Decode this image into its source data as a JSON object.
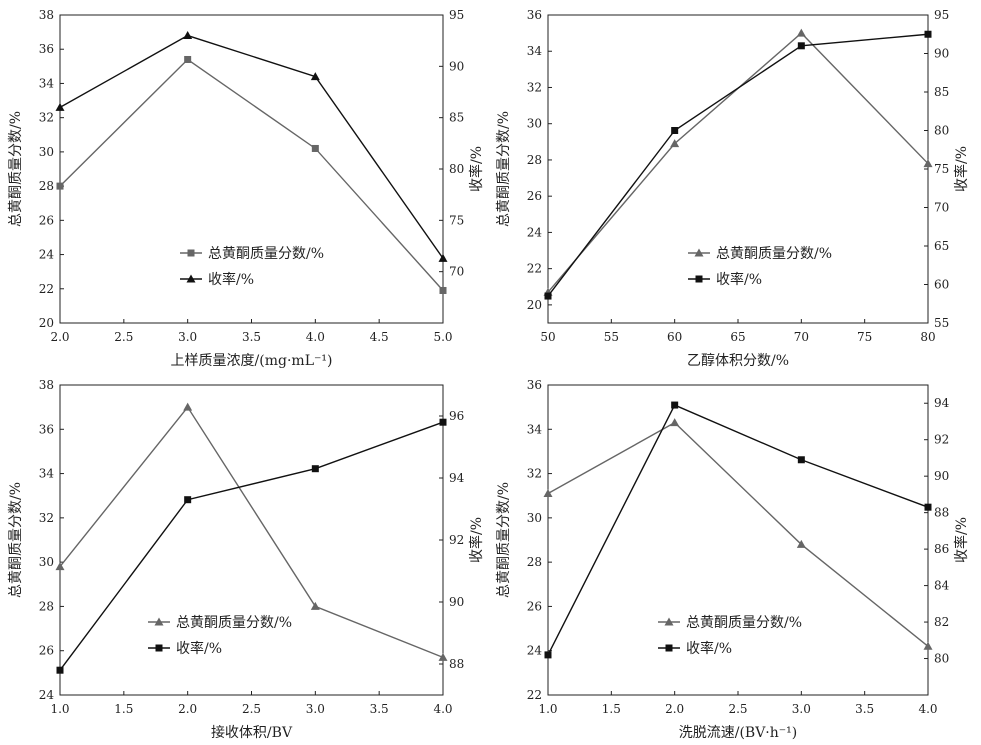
{
  "chart_data": [
    {
      "type": "line",
      "xlabel": "上样质量浓度/(mg·mL⁻¹)",
      "ylabel_left": "总黄酮质量分数/%",
      "ylabel_right": "收率/%",
      "x": [
        2.0,
        3.0,
        4.0,
        5.0
      ],
      "xlim": [
        2.0,
        5.0
      ],
      "xticks": [
        "2.0",
        "2.5",
        "3.0",
        "3.5",
        "4.0",
        "4.5",
        "5.0"
      ],
      "ylim_left": [
        20,
        38
      ],
      "yticks_left": [
        "20",
        "22",
        "24",
        "26",
        "28",
        "30",
        "32",
        "34",
        "36",
        "38"
      ],
      "ylim_right": [
        65,
        95
      ],
      "yticks_right": [
        "70",
        "75",
        "80",
        "85",
        "90",
        "95"
      ],
      "series": [
        {
          "name": "总黄酮质量分数/%",
          "axis": "left",
          "marker": "square",
          "color": "#666666",
          "values": [
            28.0,
            35.4,
            30.2,
            21.9
          ]
        },
        {
          "name": "收率/%",
          "axis": "right",
          "marker": "triangle",
          "color": "#111111",
          "values": [
            86.0,
            93.0,
            89.0,
            71.3
          ]
        }
      ],
      "legend_position": "lower-center"
    },
    {
      "type": "line",
      "xlabel": "乙醇体积分数/%",
      "ylabel_left": "总黄酮质量分数/%",
      "ylabel_right": "收率/%",
      "x": [
        50,
        60,
        70,
        80
      ],
      "xlim": [
        50,
        80
      ],
      "xticks": [
        "50",
        "55",
        "60",
        "65",
        "70",
        "75",
        "80"
      ],
      "ylim_left": [
        19,
        36
      ],
      "yticks_left": [
        "20",
        "22",
        "24",
        "26",
        "28",
        "30",
        "32",
        "34",
        "36"
      ],
      "ylim_right": [
        55,
        95
      ],
      "yticks_right": [
        "55",
        "60",
        "65",
        "70",
        "75",
        "80",
        "85",
        "90",
        "95"
      ],
      "series": [
        {
          "name": "总黄酮质量分数/%",
          "axis": "left",
          "marker": "triangle",
          "color": "#666666",
          "values": [
            20.7,
            28.9,
            35.0,
            27.8
          ]
        },
        {
          "name": "收率/%",
          "axis": "right",
          "marker": "square",
          "color": "#111111",
          "values": [
            58.5,
            80.0,
            91.0,
            92.5
          ]
        }
      ],
      "legend_position": "lower-center"
    },
    {
      "type": "line",
      "xlabel": "接收体积/BV",
      "ylabel_left": "总黄酮质量分数/%",
      "ylabel_right": "收率/%",
      "x": [
        1.0,
        2.0,
        3.0,
        4.0
      ],
      "xlim": [
        1.0,
        4.0
      ],
      "xticks": [
        "1.0",
        "1.5",
        "2.0",
        "2.5",
        "3.0",
        "3.5",
        "4.0"
      ],
      "ylim_left": [
        24,
        38
      ],
      "yticks_left": [
        "24",
        "26",
        "28",
        "30",
        "32",
        "34",
        "36",
        "38"
      ],
      "ylim_right": [
        87,
        97
      ],
      "yticks_right": [
        "88",
        "90",
        "92",
        "94",
        "96"
      ],
      "series": [
        {
          "name": "总黄酮质量分数/%",
          "axis": "left",
          "marker": "triangle",
          "color": "#666666",
          "values": [
            29.8,
            37.0,
            28.0,
            25.7
          ]
        },
        {
          "name": "收率/%",
          "axis": "right",
          "marker": "square",
          "color": "#111111",
          "values": [
            87.8,
            93.3,
            94.3,
            95.8
          ]
        }
      ],
      "legend_position": "lower-center"
    },
    {
      "type": "line",
      "xlabel": "洗脱流速/(BV·h⁻¹)",
      "ylabel_left": "总黄酮质量分数/%",
      "ylabel_right": "收率/%",
      "x": [
        1.0,
        2.0,
        3.0,
        4.0
      ],
      "xlim": [
        1.0,
        4.0
      ],
      "xticks": [
        "1.0",
        "1.5",
        "2.0",
        "2.5",
        "3.0",
        "3.5",
        "4.0"
      ],
      "ylim_left": [
        22,
        36
      ],
      "yticks_left": [
        "22",
        "24",
        "26",
        "28",
        "30",
        "32",
        "34",
        "36"
      ],
      "ylim_right": [
        78,
        95
      ],
      "yticks_right": [
        "80",
        "82",
        "84",
        "86",
        "88",
        "90",
        "92",
        "94"
      ],
      "series": [
        {
          "name": "总黄酮质量分数/%",
          "axis": "left",
          "marker": "triangle",
          "color": "#666666",
          "values": [
            31.1,
            34.3,
            28.8,
            24.2
          ]
        },
        {
          "name": "收率/%",
          "axis": "right",
          "marker": "square",
          "color": "#111111",
          "values": [
            80.2,
            93.9,
            90.9,
            88.3
          ]
        }
      ],
      "legend_position": "lower-center"
    }
  ]
}
